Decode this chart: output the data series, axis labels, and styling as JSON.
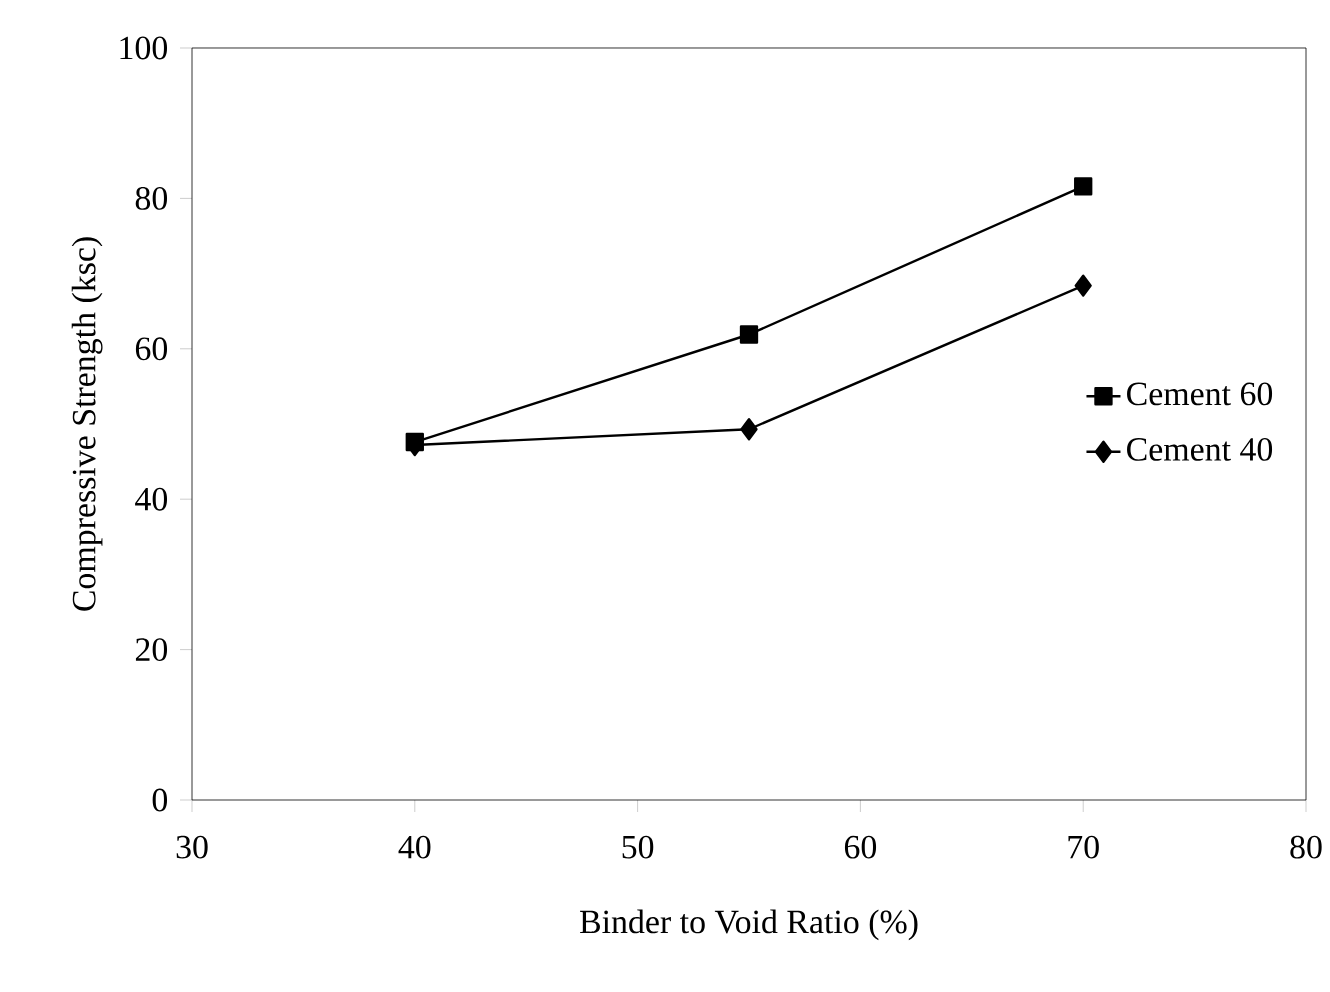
{
  "chart_data": {
    "type": "line",
    "xlabel": "Binder to Void Ratio (%)",
    "ylabel": "Compressive Strength (ksc)",
    "x": [
      40,
      55,
      70
    ],
    "series": [
      {
        "name": "Cement 60",
        "color": "#000000",
        "marker": "square",
        "values": [
          47.6,
          61.9,
          81.6
        ]
      },
      {
        "name": "Cement 40",
        "color": "#000000",
        "marker": "diamond",
        "values": [
          47.2,
          49.3,
          68.4
        ]
      }
    ],
    "xlim": [
      30,
      80
    ],
    "ylim": [
      0,
      100
    ],
    "xticks": [
      30,
      40,
      50,
      60,
      70,
      80
    ],
    "yticks": [
      0,
      20,
      40,
      60,
      80,
      100
    ],
    "grid": false,
    "legend": "right",
    "line_style": "solid"
  }
}
